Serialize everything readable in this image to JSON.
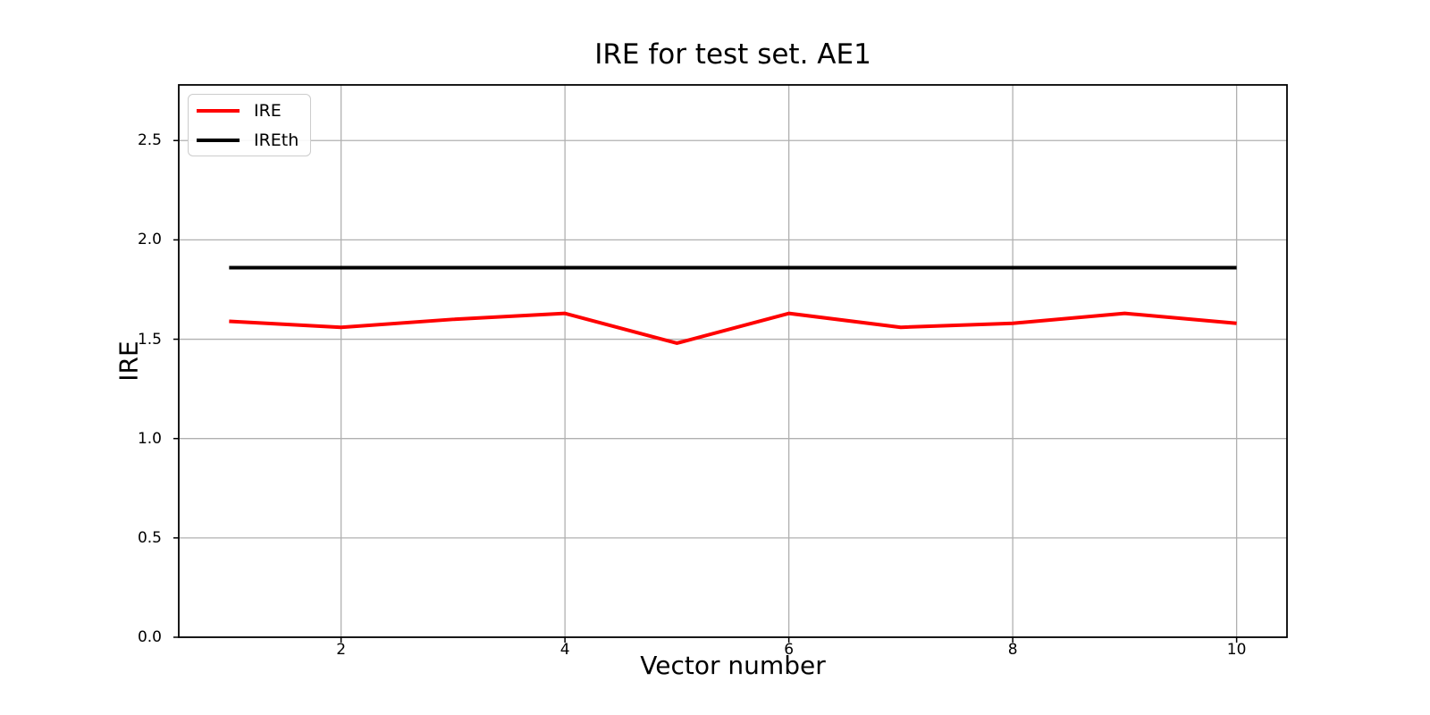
{
  "chart_data": {
    "type": "line",
    "title": "IRE for test set. AE1",
    "xlabel": "Vector number",
    "ylabel": "IRE",
    "x": [
      1,
      2,
      3,
      4,
      5,
      6,
      7,
      8,
      9,
      10
    ],
    "series": [
      {
        "name": "IRE",
        "color": "#ff0000",
        "values": [
          1.59,
          1.56,
          1.6,
          1.63,
          1.48,
          1.63,
          1.56,
          1.58,
          1.63,
          1.58
        ]
      },
      {
        "name": "IREth",
        "color": "#000000",
        "values": [
          1.86,
          1.86,
          1.86,
          1.86,
          1.86,
          1.86,
          1.86,
          1.86,
          1.86,
          1.86
        ]
      }
    ],
    "xlim": [
      0.55,
      10.45
    ],
    "ylim": [
      0,
      2.78
    ],
    "xticks": {
      "values": [
        2,
        4,
        6,
        8,
        10
      ],
      "labels": [
        "2",
        "4",
        "6",
        "8",
        "10"
      ]
    },
    "yticks": {
      "values": [
        0.0,
        0.5,
        1.0,
        1.5,
        2.0,
        2.5
      ],
      "labels": [
        "0.0",
        "0.5",
        "1.0",
        "1.5",
        "2.0",
        "2.5"
      ]
    },
    "grid": true,
    "grid_color": "#b0b0b0",
    "axis_color": "#000000",
    "background_color": "#ffffff",
    "legend": {
      "position": "upper left"
    }
  }
}
